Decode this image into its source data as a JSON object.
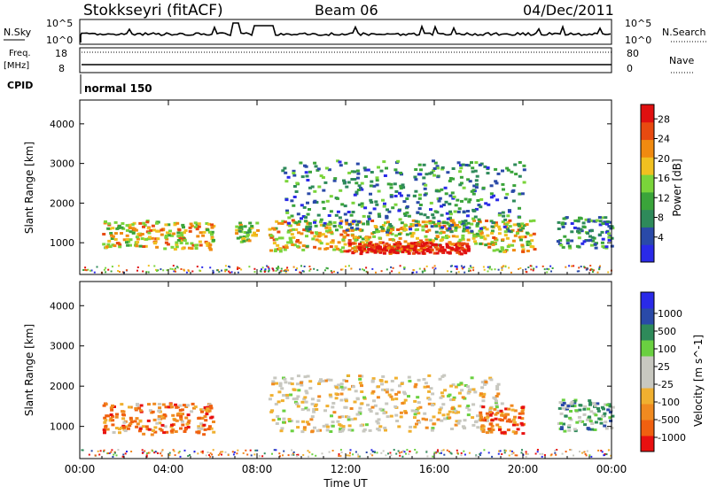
{
  "header": {
    "station": "Stokkseyri (fitACF)",
    "beam": "Beam 06",
    "date": "04/Dec/2011"
  },
  "summary_panels": {
    "nsky": {
      "label": "N.Sky",
      "left_ticks": [
        "10^5",
        "10^0"
      ]
    },
    "nsearch": {
      "label": "N.Search",
      "right_ticks": [
        "10^5",
        "10^0"
      ]
    },
    "freq": {
      "label_line1": "Freq.",
      "label_line2": "[MHz]",
      "left_ticks": [
        "18",
        "8"
      ]
    },
    "nave": {
      "label": "Nave",
      "right_ticks": [
        "80",
        "0"
      ]
    },
    "cpid": {
      "label": "CPID",
      "value": "normal 150"
    }
  },
  "colors": {
    "power": [
      "#2a2ae8",
      "#2a4aa8",
      "#2e8a5a",
      "#3aa43a",
      "#7ad43a",
      "#f0c020",
      "#f08a10",
      "#e84a10",
      "#e01010"
    ],
    "velocity": [
      "#e81010",
      "#f06010",
      "#f08a20",
      "#f0b030",
      "#c8c8c0",
      "#c8c8c0",
      "#6ad040",
      "#2e8a5a",
      "#2a4aa8",
      "#2a2ae8"
    ]
  },
  "chart_data": [
    {
      "type": "heatmap",
      "name": "power",
      "ylabel": "Slant Range [km]",
      "xlabel": "",
      "x_ticks": [
        "00:00",
        "04:00",
        "08:00",
        "12:00",
        "16:00",
        "20:00",
        "00:00"
      ],
      "y_ticks": [
        1000,
        2000,
        3000,
        4000
      ],
      "ylim": [
        200,
        4600
      ],
      "xlim": [
        0,
        24
      ],
      "colorbar_label": "Power [dB]",
      "colorbar_ticks": [
        "28",
        "24",
        "20",
        "16",
        "12",
        "8",
        "4"
      ],
      "regions": [
        {
          "t_start": 1.0,
          "t_end": 3.6,
          "r_center": 1250,
          "r_half": 350,
          "level": 5
        },
        {
          "t_start": 3.6,
          "t_end": 6.0,
          "r_center": 1200,
          "r_half": 350,
          "level": 5
        },
        {
          "t_start": 7.0,
          "t_end": 8.0,
          "r_center": 1300,
          "r_half": 250,
          "level": 4
        },
        {
          "t_start": 8.5,
          "t_end": 20.5,
          "r_center": 1200,
          "r_half": 400,
          "level": 5
        },
        {
          "t_start": 12.0,
          "t_end": 17.5,
          "r_center": 900,
          "r_half": 150,
          "level": 8
        },
        {
          "t_start": 9.0,
          "t_end": 20.0,
          "r_center": 2200,
          "r_half": 900,
          "level": 2
        },
        {
          "t_start": 21.5,
          "t_end": 24.0,
          "r_center": 1300,
          "r_half": 400,
          "level": 2
        }
      ]
    },
    {
      "type": "heatmap",
      "name": "velocity",
      "ylabel": "Slant Range [km]",
      "xlabel": "Time UT",
      "x_ticks": [
        "00:00",
        "04:00",
        "08:00",
        "12:00",
        "16:00",
        "20:00",
        "00:00"
      ],
      "y_ticks": [
        1000,
        2000,
        3000,
        4000
      ],
      "ylim": [
        200,
        4600
      ],
      "xlim": [
        0,
        24
      ],
      "colorbar_label": "Velocity [m s^-1]",
      "colorbar_ticks": [
        "1000",
        "500",
        "100",
        "25",
        "-25",
        "-100",
        "-500",
        "-1000"
      ],
      "regions": [
        {
          "t_start": 1.0,
          "t_end": 6.0,
          "r_center": 1200,
          "r_half": 400,
          "level": 2
        },
        {
          "t_start": 8.5,
          "t_end": 19.0,
          "r_center": 1600,
          "r_half": 700,
          "level": 4
        },
        {
          "t_start": 18.0,
          "t_end": 20.0,
          "r_center": 1200,
          "r_half": 350,
          "level": 1
        },
        {
          "t_start": 21.5,
          "t_end": 24.0,
          "r_center": 1300,
          "r_half": 400,
          "level": 6
        }
      ]
    }
  ]
}
